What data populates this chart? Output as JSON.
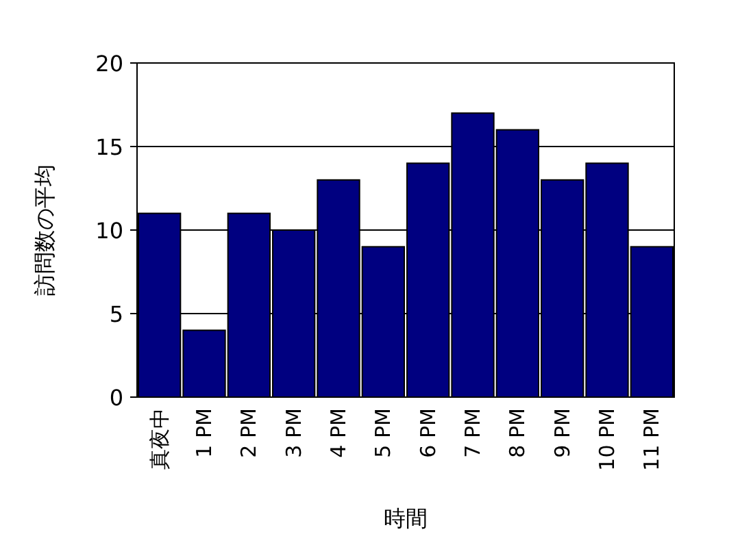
{
  "chart_data": {
    "type": "bar",
    "xlabel": "時間",
    "ylabel": "訪問数の平均",
    "categories": [
      "真夜中",
      "1 PM",
      "2 PM",
      "3 PM",
      "4 PM",
      "5 PM",
      "6 PM",
      "7 PM",
      "8 PM",
      "9 PM",
      "10 PM",
      "11 PM"
    ],
    "values": [
      11,
      4,
      11,
      10,
      13,
      9,
      14,
      17,
      16,
      13,
      14,
      9
    ],
    "color": "#000080",
    "ylim": [
      0,
      20
    ],
    "yticks": [
      0,
      5,
      10,
      15,
      20
    ],
    "grid": "y"
  }
}
